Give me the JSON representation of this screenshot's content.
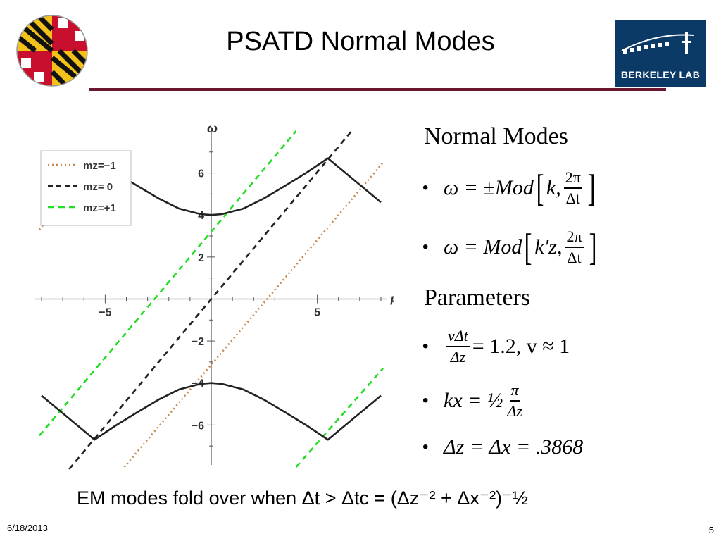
{
  "slide": {
    "title": "PSATD Normal Modes",
    "date": "6/18/2013",
    "page_number": "5",
    "logos": {
      "left": "university-of-maryland-seal",
      "right_text": "BERKELEY LAB"
    }
  },
  "content": {
    "normal_modes_heading": "Normal Modes",
    "eq1": {
      "lhs": "ω = ±Mod",
      "k": "k,",
      "num": "2π",
      "den": "Δt"
    },
    "eq2": {
      "lhs": "ω = Mod",
      "k": "k′z,",
      "num": "2π",
      "den": "Δt"
    },
    "parameters_heading": "Parameters",
    "param1": {
      "num": "vΔt",
      "den": "Δz",
      "rhs": "= 1.2, v ≈ 1"
    },
    "param2": {
      "lhs": "kx = ½",
      "num": "π",
      "den": "Δz"
    },
    "param3": "Δz = Δx = .3868",
    "note": "EM modes fold over when Δt > Δtc = (Δz⁻² + Δx⁻²)⁻½"
  },
  "chart_data": {
    "type": "line",
    "xlabel": "kz",
    "ylabel": "ω",
    "xlim": [
      -8.3,
      8.3
    ],
    "ylim": [
      -7.9,
      8.2
    ],
    "x_ticks": [
      "−5",
      "5"
    ],
    "y_ticks": [
      "6",
      "4",
      "2",
      "−2",
      "−4",
      "−6"
    ],
    "legend_position": "top-left",
    "legend": [
      "mz=−1",
      "mz= 0",
      "mz=+1"
    ],
    "series": [
      {
        "name": "mz= 0",
        "style": "dashed",
        "color": "#222222",
        "x": [
          -6.7,
          6.7
        ],
        "y": [
          -8.1,
          8.1
        ]
      },
      {
        "name": "mz=+1",
        "style": "dashed",
        "color": "#22dd22",
        "x": [
          -8.1,
          4.0
        ],
        "y": [
          -6.5,
          8.0
        ]
      },
      {
        "name": "mz=+1",
        "style": "dashed",
        "color": "#22dd22",
        "x": [
          4.0,
          8.1
        ],
        "y": [
          -8.0,
          -3.3
        ]
      },
      {
        "name": "mz=−1",
        "style": "dotted",
        "color": "#c8864a",
        "x": [
          -8.1,
          -7.4
        ],
        "y": [
          3.3,
          4.2
        ]
      },
      {
        "name": "mz=−1",
        "style": "dotted",
        "color": "#c8864a",
        "x": [
          -4.1,
          8.1
        ],
        "y": [
          -8.0,
          6.5
        ]
      },
      {
        "name": "±Mod[k, 2π/Δt]",
        "style": "solid",
        "color": "#222222",
        "x": [
          -5.5,
          -4.5,
          -3.5,
          -2.5,
          -1.5,
          -0.5,
          0,
          0.5,
          1.5,
          2.5,
          3.5,
          4.5,
          5.5,
          8.0
        ],
        "y": [
          6.7,
          6.02,
          5.4,
          4.8,
          4.3,
          4.04,
          4.0,
          4.04,
          4.3,
          4.8,
          5.4,
          6.02,
          6.7,
          4.6
        ]
      },
      {
        "name": "±Mod[k, 2π/Δt]",
        "style": "solid",
        "color": "#222222",
        "x": [
          -8.0,
          -5.5,
          -4.5,
          -3.5,
          -2.5,
          -1.5,
          -0.5,
          0,
          0.5,
          1.5,
          2.5,
          3.5,
          4.5,
          5.5,
          8.0
        ],
        "y": [
          -4.6,
          -6.7,
          -6.02,
          -5.4,
          -4.8,
          -4.3,
          -4.04,
          -4.0,
          -4.04,
          -4.3,
          -4.8,
          -5.4,
          -6.02,
          -6.7,
          -4.6
        ]
      }
    ]
  }
}
